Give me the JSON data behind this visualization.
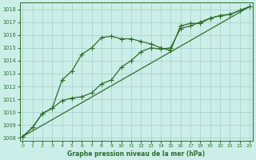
{
  "title": "Graphe pression niveau de la mer (hPa)",
  "background_color": "#cceee8",
  "grid_color": "#aad4ce",
  "line_color": "#2d6e2d",
  "x_ticks": [
    0,
    1,
    2,
    3,
    4,
    5,
    6,
    7,
    8,
    9,
    10,
    11,
    12,
    13,
    14,
    15,
    16,
    17,
    18,
    19,
    20,
    21,
    22,
    23
  ],
  "y_ticks": [
    1008,
    1009,
    1010,
    1011,
    1012,
    1013,
    1014,
    1015,
    1016,
    1017,
    1018
  ],
  "ylim": [
    1007.8,
    1018.5
  ],
  "xlim": [
    -0.3,
    23.3
  ],
  "series1_x": [
    0,
    1,
    2,
    3,
    4,
    5,
    6,
    7,
    8,
    9,
    10,
    11,
    12,
    13,
    14,
    15,
    16,
    17,
    18,
    19,
    20,
    21,
    22,
    23
  ],
  "series1_y": [
    1008.1,
    1008.8,
    1009.9,
    1010.3,
    1012.5,
    1013.2,
    1014.5,
    1015.0,
    1015.8,
    1015.9,
    1015.7,
    1015.7,
    1015.5,
    1015.3,
    1015.0,
    1014.8,
    1016.7,
    1016.9,
    1016.9,
    1017.3,
    1017.5,
    1017.6,
    1017.9,
    1018.2
  ],
  "series2_x": [
    0,
    1,
    2,
    3,
    4,
    5,
    6,
    7,
    8,
    9,
    10,
    11,
    12,
    13,
    14,
    15,
    16,
    17,
    18,
    19,
    20,
    21,
    22,
    23
  ],
  "series2_y": [
    1008.1,
    1008.8,
    1009.9,
    1010.3,
    1010.9,
    1011.1,
    1011.2,
    1011.5,
    1012.2,
    1012.5,
    1013.5,
    1014.0,
    1014.7,
    1015.0,
    1014.9,
    1015.0,
    1016.5,
    1016.7,
    1017.0,
    1017.3,
    1017.5,
    1017.6,
    1017.9,
    1018.2
  ],
  "series3_x": [
    0,
    23
  ],
  "series3_y": [
    1008.1,
    1018.2
  ]
}
